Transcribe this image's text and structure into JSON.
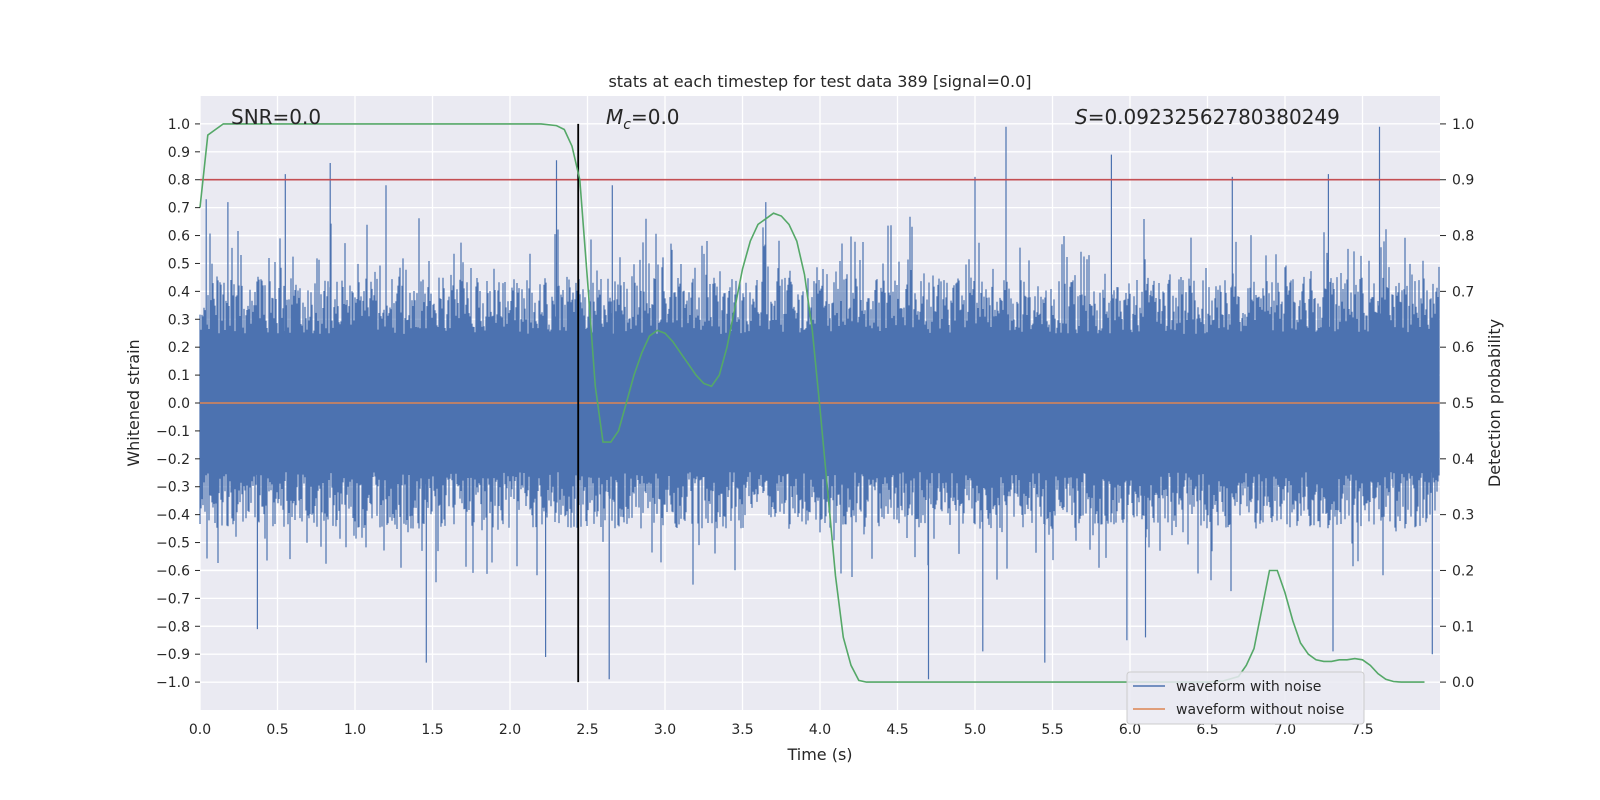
{
  "chart_data": {
    "type": "line",
    "title": "stats at each timestep for test data 389 [signal=0.0]",
    "xlabel": "Time (s)",
    "ylabel": "Whitened strain",
    "y2label": "Detection probability",
    "xlim": [
      0.0,
      8.0
    ],
    "ylim": [
      -1.1,
      1.1
    ],
    "y2lim": [
      -0.05,
      1.05
    ],
    "xticks": [
      "0.0",
      "0.5",
      "1.0",
      "1.5",
      "2.0",
      "2.5",
      "3.0",
      "3.5",
      "4.0",
      "4.5",
      "5.0",
      "5.5",
      "6.0",
      "6.5",
      "7.0",
      "7.5"
    ],
    "yticks": [
      "1.0",
      "0.9",
      "0.8",
      "0.7",
      "0.6",
      "0.5",
      "0.4",
      "0.3",
      "0.2",
      "0.1",
      "0.0",
      "−0.1",
      "−0.2",
      "−0.3",
      "−0.4",
      "−0.5",
      "−0.6",
      "−0.7",
      "−0.8",
      "−0.9",
      "−1.0"
    ],
    "y2ticks": [
      "1.0",
      "0.9",
      "0.8",
      "0.7",
      "0.6",
      "0.5",
      "0.4",
      "0.3",
      "0.2",
      "0.1",
      "0.0"
    ],
    "annotations": {
      "snr": "SNR=0.0",
      "mc_symbol": "M",
      "mc_sub": "c",
      "mc_value": "=0.0",
      "s_symbol": "S",
      "s_value": "=0.09232562780380249"
    },
    "threshold_line": {
      "y2": 0.9,
      "color": "#c44e52"
    },
    "marker_line": {
      "x": 2.44,
      "color": "#000000"
    },
    "noise_envelope": {
      "series_name": "waveform with noise",
      "color": "#4c72b0",
      "typical_range": [
        -0.45,
        0.45
      ],
      "spikes": [
        {
          "t": 0.04,
          "v": 0.73
        },
        {
          "t": 0.18,
          "v": 0.72
        },
        {
          "t": 0.55,
          "v": 0.82
        },
        {
          "t": 0.84,
          "v": 0.86
        },
        {
          "t": 1.2,
          "v": 0.78
        },
        {
          "t": 2.3,
          "v": 0.87
        },
        {
          "t": 2.66,
          "v": 0.78
        },
        {
          "t": 3.65,
          "v": 0.72
        },
        {
          "t": 5.0,
          "v": 0.81
        },
        {
          "t": 5.2,
          "v": 0.99
        },
        {
          "t": 5.88,
          "v": 0.89
        },
        {
          "t": 6.66,
          "v": 0.81
        },
        {
          "t": 7.28,
          "v": 0.82
        },
        {
          "t": 7.61,
          "v": 0.99
        },
        {
          "t": 0.37,
          "v": -0.81
        },
        {
          "t": 1.46,
          "v": -0.93
        },
        {
          "t": 2.23,
          "v": -0.91
        },
        {
          "t": 2.64,
          "v": -0.99
        },
        {
          "t": 4.7,
          "v": -0.99
        },
        {
          "t": 5.05,
          "v": -0.89
        },
        {
          "t": 5.45,
          "v": -0.93
        },
        {
          "t": 5.98,
          "v": -0.85
        },
        {
          "t": 6.1,
          "v": -0.84
        },
        {
          "t": 7.31,
          "v": -0.89
        },
        {
          "t": 7.95,
          "v": -0.9
        }
      ]
    },
    "series": [
      {
        "name": "waveform without noise",
        "axis": "left",
        "color": "#dd8452",
        "x": [
          0.0,
          8.0
        ],
        "y": [
          0.0,
          0.0
        ]
      },
      {
        "name": "detection probability",
        "axis": "right",
        "color": "#55a868",
        "x": [
          0.0,
          0.05,
          0.1,
          0.15,
          0.25,
          0.5,
          1.0,
          1.5,
          2.0,
          2.2,
          2.3,
          2.35,
          2.4,
          2.45,
          2.5,
          2.55,
          2.6,
          2.65,
          2.7,
          2.75,
          2.8,
          2.85,
          2.9,
          2.95,
          3.0,
          3.05,
          3.1,
          3.15,
          3.2,
          3.25,
          3.3,
          3.35,
          3.4,
          3.45,
          3.5,
          3.55,
          3.6,
          3.65,
          3.7,
          3.75,
          3.8,
          3.85,
          3.9,
          3.95,
          4.0,
          4.05,
          4.1,
          4.15,
          4.2,
          4.25,
          4.3,
          4.35,
          4.5,
          5.0,
          5.5,
          6.0,
          6.5,
          6.6,
          6.7,
          6.75,
          6.8,
          6.85,
          6.9,
          6.95,
          7.0,
          7.05,
          7.1,
          7.15,
          7.2,
          7.25,
          7.3,
          7.35,
          7.4,
          7.45,
          7.5,
          7.55,
          7.6,
          7.65,
          7.7,
          7.75,
          7.8,
          7.9
        ],
        "y": [
          0.85,
          0.98,
          0.99,
          1.0,
          1.0,
          1.0,
          1.0,
          1.0,
          1.0,
          1.0,
          0.997,
          0.99,
          0.96,
          0.9,
          0.72,
          0.53,
          0.43,
          0.43,
          0.45,
          0.5,
          0.55,
          0.59,
          0.62,
          0.63,
          0.625,
          0.61,
          0.59,
          0.57,
          0.55,
          0.535,
          0.53,
          0.55,
          0.6,
          0.67,
          0.74,
          0.79,
          0.82,
          0.83,
          0.84,
          0.835,
          0.82,
          0.79,
          0.73,
          0.63,
          0.49,
          0.34,
          0.19,
          0.08,
          0.03,
          0.003,
          0.0,
          0.0,
          0.0,
          0.0,
          0.0,
          0.0,
          0.0,
          0.002,
          0.01,
          0.03,
          0.06,
          0.13,
          0.2,
          0.2,
          0.16,
          0.11,
          0.07,
          0.05,
          0.04,
          0.037,
          0.037,
          0.04,
          0.04,
          0.042,
          0.04,
          0.03,
          0.015,
          0.005,
          0.001,
          0.0,
          0.0,
          0.0
        ]
      }
    ],
    "legend": {
      "placement": "lower-right",
      "entries": [
        {
          "label": "waveform with noise",
          "color": "#4c72b0"
        },
        {
          "label": "waveform without noise",
          "color": "#dd8452"
        }
      ]
    },
    "grid": true,
    "background": "#eaeaf2"
  }
}
